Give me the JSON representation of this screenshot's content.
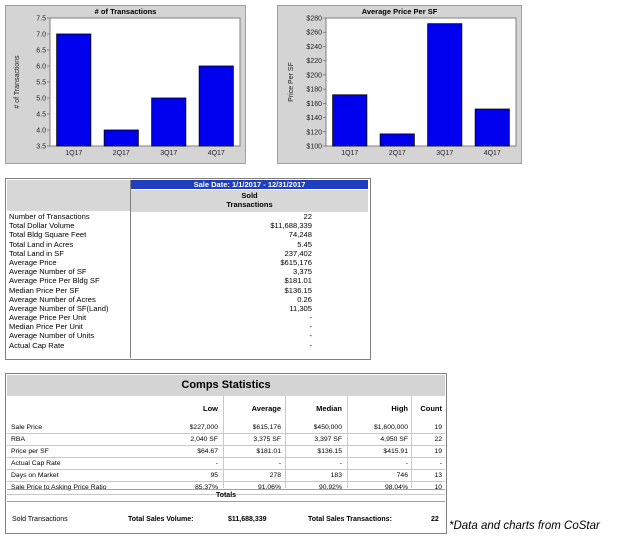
{
  "chart_data": [
    {
      "type": "bar",
      "title": "# of Transactions",
      "ylabel": "# of Transactions",
      "categories": [
        "1Q17",
        "2Q17",
        "3Q17",
        "4Q17"
      ],
      "values": [
        7.0,
        4.0,
        5.0,
        6.0
      ],
      "ylim": [
        3.5,
        7.5
      ],
      "yticks": [
        "3.5",
        "4.0",
        "4.5",
        "5.0",
        "5.5",
        "6.0",
        "6.5",
        "7.0",
        "7.5"
      ],
      "bar_color": "#0000ee",
      "grid": false
    },
    {
      "type": "bar",
      "title": "Average Price Per SF",
      "ylabel": "Price Per SF",
      "categories": [
        "1Q17",
        "2Q17",
        "3Q17",
        "4Q17"
      ],
      "values": [
        172,
        117,
        272,
        152
      ],
      "ylim": [
        100,
        280
      ],
      "yticks": [
        "$100",
        "$120",
        "$140",
        "$160",
        "$180",
        "$200",
        "$220",
        "$240",
        "$260",
        "$280"
      ],
      "bar_color": "#0000ee",
      "grid": false
    }
  ],
  "sale_table": {
    "header": "Sale Date: 1/1/2017 - 12/31/2017",
    "column_line1": "Sold",
    "column_line2": "Transactions",
    "rows": [
      {
        "label": "Number of Transactions",
        "value": "22"
      },
      {
        "label": "Total Dollar Volume",
        "value": "$11,688,339"
      },
      {
        "label": "Total Bldg Square Feet",
        "value": "74,248"
      },
      {
        "label": "Total Land in Acres",
        "value": "5.45"
      },
      {
        "label": "Total Land in SF",
        "value": "237,402"
      },
      {
        "label": "Average Price",
        "value": "$615,176"
      },
      {
        "label": "Average Number of SF",
        "value": "3,375"
      },
      {
        "label": "Average Price Per Bldg SF",
        "value": "$181.01"
      },
      {
        "label": "Median Price Per SF",
        "value": "$136.15"
      },
      {
        "label": "Average Number of Acres",
        "value": "0.26"
      },
      {
        "label": "Average Number of SF(Land)",
        "value": "11,305"
      },
      {
        "label": "Average Price Per Unit",
        "value": "-"
      },
      {
        "label": "Median Price Per Unit",
        "value": "-"
      },
      {
        "label": "Average Number of Units",
        "value": "-"
      },
      {
        "label": "Actual Cap Rate",
        "value": "-"
      }
    ]
  },
  "comps": {
    "title": "Comps Statistics",
    "headers": {
      "low": "Low",
      "average": "Average",
      "median": "Median",
      "high": "High",
      "count": "Count"
    },
    "rows": [
      {
        "label": "Sale Price",
        "low": "$227,000",
        "average": "$615,176",
        "median": "$450,000",
        "high": "$1,600,000",
        "count": "19"
      },
      {
        "label": "RBA",
        "low": "2,040 SF",
        "average": "3,375 SF",
        "median": "3,397 SF",
        "high": "4,950 SF",
        "count": "22"
      },
      {
        "label": "Price per SF",
        "low": "$64.67",
        "average": "$181.01",
        "median": "$136.15",
        "high": "$415.91",
        "count": "19"
      },
      {
        "label": "Actual Cap Rate",
        "low": "-",
        "average": "-",
        "median": "-",
        "high": "-",
        "count": "-"
      },
      {
        "label": "Days on Market",
        "low": "95",
        "average": "278",
        "median": "183",
        "high": "746",
        "count": "13"
      },
      {
        "label": "Sale Price to Asking Price Ratio",
        "low": "85.37%",
        "average": "91.06%",
        "median": "90.92%",
        "high": "98.04%",
        "count": "10"
      }
    ],
    "totals_label": "Totals",
    "footer": {
      "sold_label": "Sold Transactions",
      "volume_label": "Total Sales Volume:",
      "volume_value": "$11,688,339",
      "trans_label": "Total Sales Transactions:",
      "trans_value": "22"
    }
  },
  "footnote": "*Data and charts from CoStar"
}
